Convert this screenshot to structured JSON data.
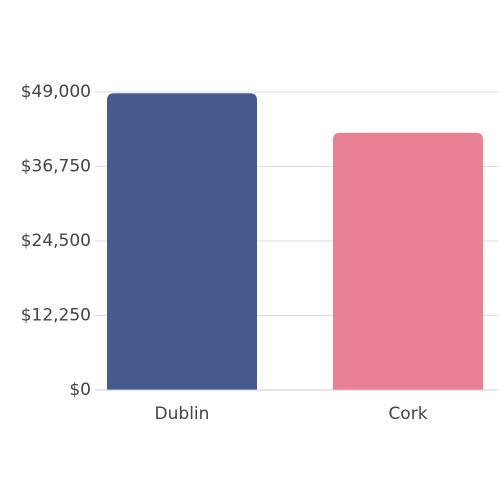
{
  "chart_data": {
    "type": "bar",
    "categories": [
      "Dublin",
      "Cork"
    ],
    "values": [
      48800,
      42300
    ],
    "colors": [
      "#475a8f",
      "#e98094"
    ],
    "ylim": [
      0,
      49000
    ],
    "yticks": [
      {
        "value": 0,
        "label": "$0"
      },
      {
        "value": 12250,
        "label": "$12,250"
      },
      {
        "value": 24500,
        "label": "$24,500"
      },
      {
        "value": 36750,
        "label": "$36,750"
      },
      {
        "value": 49000,
        "label": "$49,000"
      }
    ],
    "grid": true
  }
}
